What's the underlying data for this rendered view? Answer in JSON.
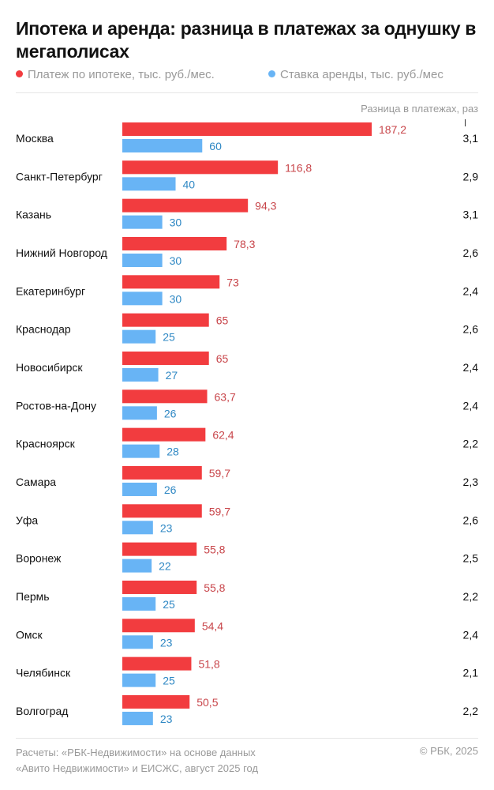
{
  "title": "Ипотека и аренда: разница в платежах за однушку в мегаполисах",
  "colors": {
    "mortgage": "#f23c3f",
    "rent": "#68b4f5",
    "mortgage_label": "#c8454a",
    "rent_label": "#2f88c4"
  },
  "chart_data": {
    "type": "bar",
    "orientation": "horizontal",
    "title": "Ипотека и аренда: разница в платежах за однушку в мегаполисах",
    "categories": [
      "Москва",
      "Санкт-Петербург",
      "Казань",
      "Нижний Новгород",
      "Екатеринбург",
      "Краснодар",
      "Новосибирск",
      "Ростов-на-Дону",
      "Красноярск",
      "Самара",
      "Уфа",
      "Воронеж",
      "Пермь",
      "Омск",
      "Челябинск",
      "Волгоград"
    ],
    "series": [
      {
        "name": "Платеж по ипотеке, тыс. руб./мес.",
        "values": [
          187.2,
          116.8,
          94.3,
          78.3,
          73,
          65,
          65,
          63.7,
          62.4,
          59.7,
          59.7,
          55.8,
          55.8,
          54.4,
          51.8,
          50.5
        ],
        "labels": [
          "187,2",
          "116,8",
          "94,3",
          "78,3",
          "73",
          "65",
          "65",
          "63,7",
          "62,4",
          "59,7",
          "59,7",
          "55,8",
          "55,8",
          "54,4",
          "51,8",
          "50,5"
        ]
      },
      {
        "name": "Ставка аренды, тыс. руб./мес",
        "values": [
          60,
          40,
          30,
          30,
          30,
          25,
          27,
          26,
          28,
          26,
          23,
          22,
          25,
          23,
          25,
          23
        ],
        "labels": [
          "60",
          "40",
          "30",
          "30",
          "30",
          "25",
          "27",
          "26",
          "28",
          "26",
          "23",
          "22",
          "25",
          "23",
          "25",
          "23"
        ]
      }
    ],
    "ratio": {
      "name": "Разница в платежах, раз",
      "labels": [
        "3,1",
        "2,9",
        "3,1",
        "2,6",
        "2,4",
        "2,6",
        "2,4",
        "2,4",
        "2,2",
        "2,3",
        "2,6",
        "2,5",
        "2,2",
        "2,4",
        "2,1",
        "2,2"
      ]
    },
    "xlim": [
      0,
      200
    ],
    "grid": false,
    "legend": "top"
  },
  "footer": {
    "source_line1": "Расчеты: «РБК-Недвижимости» на основе данных",
    "source_line2": "«Авито Недвижимости» и ЕИСЖС, август 2025 год",
    "copyright": "© РБК, 2025"
  }
}
